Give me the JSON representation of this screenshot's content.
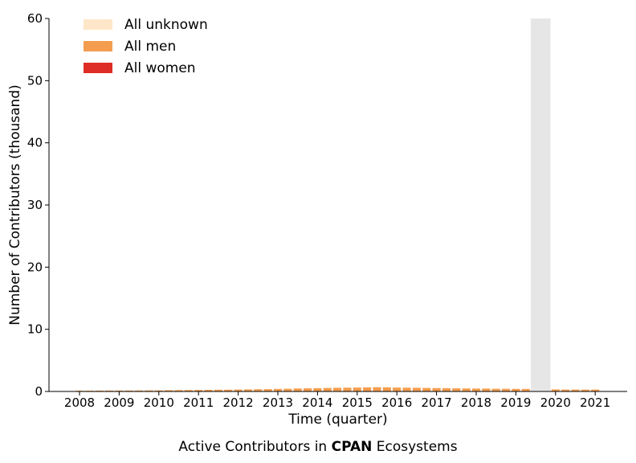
{
  "chart_data": {
    "type": "bar",
    "stacked": true,
    "xlabel": "Time (quarter)",
    "ylabel": "Number of Contributors (thousand)",
    "ylim": [
      0,
      60
    ],
    "yticks": [
      0,
      10,
      20,
      30,
      40,
      50,
      60
    ],
    "xticks": [
      "2008",
      "2009",
      "2010",
      "2011",
      "2012",
      "2013",
      "2014",
      "2015",
      "2016",
      "2017",
      "2018",
      "2019",
      "2020",
      "2021"
    ],
    "legend_placement": "top-left",
    "grid": false,
    "x_quarters": [
      "2008-Q1",
      "2008-Q2",
      "2008-Q3",
      "2008-Q4",
      "2009-Q1",
      "2009-Q2",
      "2009-Q3",
      "2009-Q4",
      "2010-Q1",
      "2010-Q2",
      "2010-Q3",
      "2010-Q4",
      "2011-Q1",
      "2011-Q2",
      "2011-Q3",
      "2011-Q4",
      "2012-Q1",
      "2012-Q2",
      "2012-Q3",
      "2012-Q4",
      "2013-Q1",
      "2013-Q2",
      "2013-Q3",
      "2013-Q4",
      "2014-Q1",
      "2014-Q2",
      "2014-Q3",
      "2014-Q4",
      "2015-Q1",
      "2015-Q2",
      "2015-Q3",
      "2015-Q4",
      "2016-Q1",
      "2016-Q2",
      "2016-Q3",
      "2016-Q4",
      "2017-Q1",
      "2017-Q2",
      "2017-Q3",
      "2017-Q4",
      "2018-Q1",
      "2018-Q2",
      "2018-Q3",
      "2018-Q4",
      "2019-Q1",
      "2019-Q2",
      "2020-Q1",
      "2020-Q2",
      "2020-Q3",
      "2020-Q4",
      "2021-Q1"
    ],
    "series": [
      {
        "name": "All women",
        "color": "#de2d26",
        "values": [
          0.005,
          0.005,
          0.005,
          0.005,
          0.005,
          0.005,
          0.005,
          0.005,
          0.005,
          0.005,
          0.005,
          0.005,
          0.01,
          0.01,
          0.01,
          0.01,
          0.01,
          0.01,
          0.01,
          0.01,
          0.01,
          0.01,
          0.01,
          0.01,
          0.01,
          0.01,
          0.01,
          0.01,
          0.01,
          0.01,
          0.01,
          0.01,
          0.01,
          0.01,
          0.01,
          0.01,
          0.01,
          0.01,
          0.01,
          0.01,
          0.01,
          0.01,
          0.01,
          0.01,
          0.01,
          0.01,
          0.01,
          0.01,
          0.01,
          0.01,
          0.01
        ]
      },
      {
        "name": "All men",
        "color": "#f49d4e",
        "values": [
          0.12,
          0.12,
          0.13,
          0.14,
          0.14,
          0.15,
          0.16,
          0.17,
          0.18,
          0.2,
          0.22,
          0.23,
          0.24,
          0.25,
          0.27,
          0.28,
          0.3,
          0.32,
          0.35,
          0.37,
          0.4,
          0.43,
          0.47,
          0.5,
          0.52,
          0.56,
          0.58,
          0.6,
          0.62,
          0.65,
          0.68,
          0.66,
          0.62,
          0.6,
          0.58,
          0.56,
          0.54,
          0.52,
          0.5,
          0.48,
          0.46,
          0.45,
          0.43,
          0.42,
          0.41,
          0.4,
          0.32,
          0.3,
          0.3,
          0.29,
          0.3
        ]
      },
      {
        "name": "All unknown",
        "color": "#fee6c8",
        "values": [
          0.01,
          0.01,
          0.01,
          0.01,
          0.01,
          0.01,
          0.01,
          0.01,
          0.01,
          0.01,
          0.01,
          0.01,
          0.01,
          0.01,
          0.01,
          0.01,
          0.01,
          0.01,
          0.01,
          0.01,
          0.01,
          0.01,
          0.01,
          0.01,
          0.01,
          0.01,
          0.01,
          0.01,
          0.01,
          0.01,
          0.01,
          0.01,
          0.01,
          0.01,
          0.01,
          0.01,
          0.01,
          0.01,
          0.01,
          0.01,
          0.01,
          0.01,
          0.01,
          0.01,
          0.01,
          0.01,
          0.01,
          0.01,
          0.01,
          0.01,
          0.01
        ]
      }
    ],
    "shaded_region": {
      "from": "2019-Q3",
      "to": "2019-Q4",
      "color": "#e6e6e6"
    }
  },
  "caption": {
    "prefix": "Active Contributors in ",
    "bold": "CPAN",
    "suffix": " Ecosystems"
  }
}
